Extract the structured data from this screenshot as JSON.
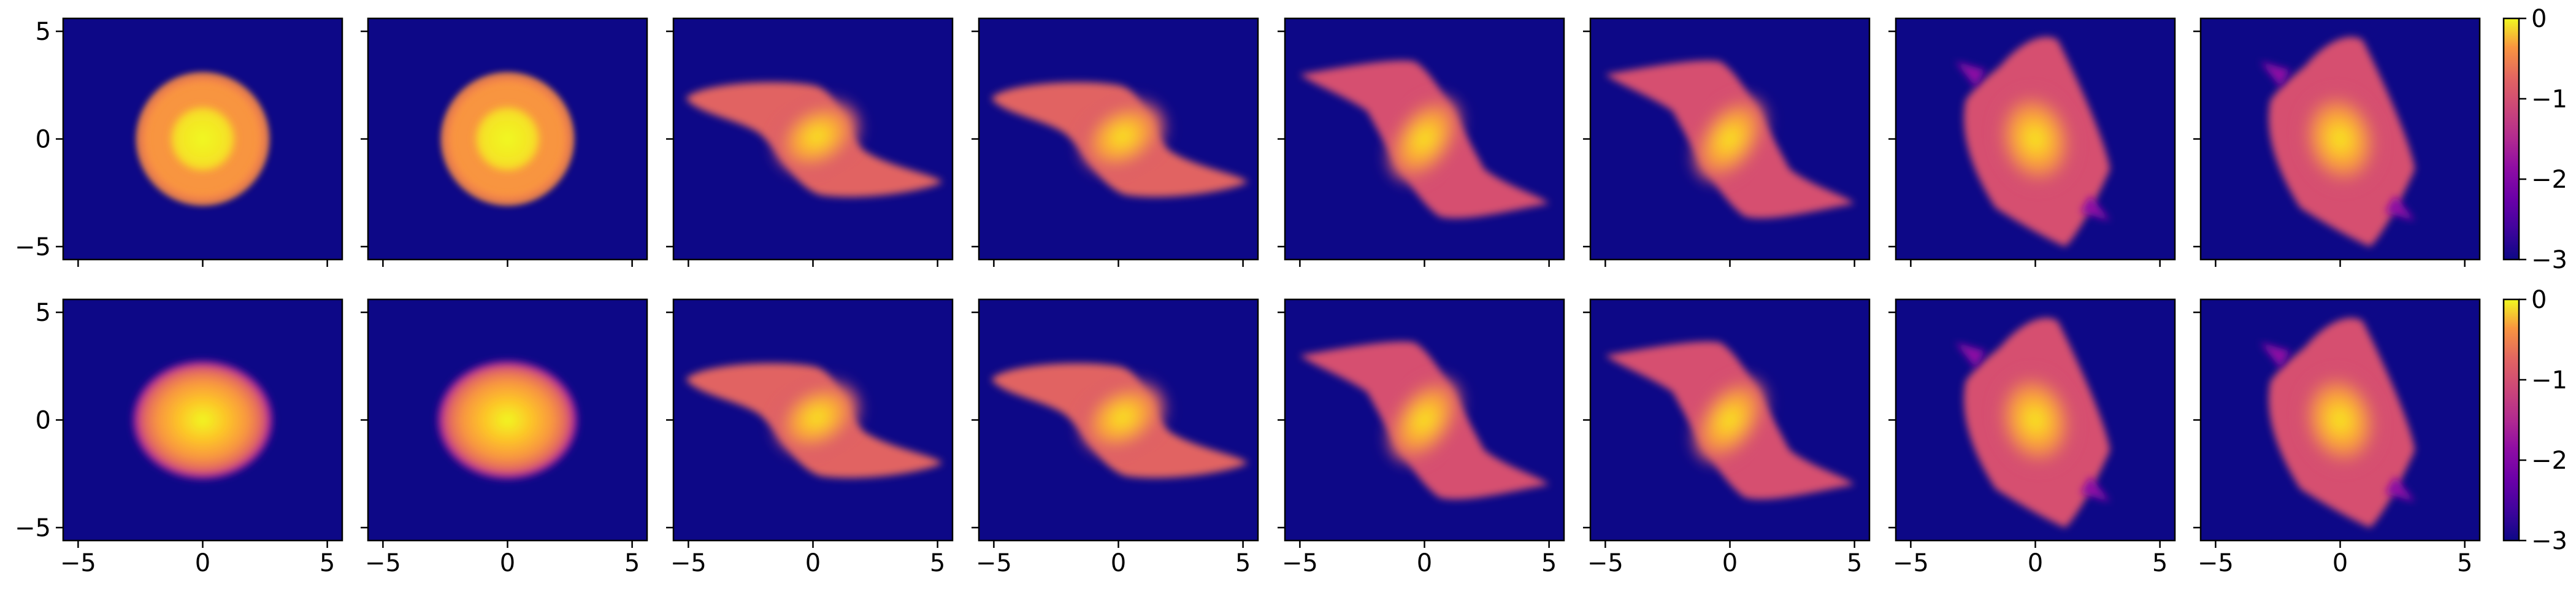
{
  "chart_data": {
    "type": "heatmap",
    "title": "",
    "grid": false,
    "rows": 2,
    "cols": 8,
    "x_ticks": [
      -5,
      0,
      5
    ],
    "y_ticks": [
      -5,
      0,
      5
    ],
    "tick_labels": {
      "minus5": "−5",
      "zero": "0",
      "plus5": "5"
    },
    "xlim": [
      -5.6,
      5.6
    ],
    "ylim": [
      -5.6,
      5.6
    ],
    "colorbar": {
      "colormap": "plasma",
      "range": [
        -3,
        0
      ],
      "ticks": [
        "0",
        "−1",
        "−2",
        "−3"
      ],
      "tick_values": [
        0,
        -1,
        -2,
        -3
      ]
    },
    "background_color": "#0d0887",
    "panels": [
      {
        "row": 0,
        "col": 0,
        "shape": "ring-disk",
        "core_radius": 1.3,
        "outer_radius": 2.6,
        "rotation_deg": 0
      },
      {
        "row": 0,
        "col": 1,
        "shape": "ring-disk",
        "core_radius": 1.3,
        "outer_radius": 2.6,
        "rotation_deg": 0
      },
      {
        "row": 0,
        "col": 2,
        "shape": "sheared-s",
        "extent": [
          -5.2,
          5.2
        ],
        "rotation_deg": -25
      },
      {
        "row": 0,
        "col": 3,
        "shape": "sheared-s",
        "extent": [
          -5.2,
          5.2
        ],
        "rotation_deg": -25
      },
      {
        "row": 0,
        "col": 4,
        "shape": "tilted-rect",
        "extent": [
          -5,
          5
        ],
        "rotation_deg": -55
      },
      {
        "row": 0,
        "col": 5,
        "shape": "tilted-rect",
        "extent": [
          -5,
          5
        ],
        "rotation_deg": -55
      },
      {
        "row": 0,
        "col": 6,
        "shape": "tilted-rect-fringe",
        "extent": [
          -5,
          5
        ],
        "rotation_deg": -70
      },
      {
        "row": 0,
        "col": 7,
        "shape": "tilted-rect-fringe",
        "extent": [
          -5,
          5
        ],
        "rotation_deg": -70
      },
      {
        "row": 1,
        "col": 0,
        "shape": "gaussian-disk",
        "outer_radius": 2.8,
        "rotation_deg": 0
      },
      {
        "row": 1,
        "col": 1,
        "shape": "gaussian-disk",
        "outer_radius": 2.8,
        "rotation_deg": 0
      },
      {
        "row": 1,
        "col": 2,
        "shape": "sheared-s",
        "extent": [
          -5.2,
          5.2
        ],
        "rotation_deg": -25
      },
      {
        "row": 1,
        "col": 3,
        "shape": "sheared-s",
        "extent": [
          -5.2,
          5.2
        ],
        "rotation_deg": -25
      },
      {
        "row": 1,
        "col": 4,
        "shape": "tilted-rect",
        "extent": [
          -5,
          5
        ],
        "rotation_deg": -55
      },
      {
        "row": 1,
        "col": 5,
        "shape": "tilted-rect",
        "extent": [
          -5,
          5
        ],
        "rotation_deg": -55
      },
      {
        "row": 1,
        "col": 6,
        "shape": "tilted-rect-fringe",
        "extent": [
          -5,
          5
        ],
        "rotation_deg": -70
      },
      {
        "row": 1,
        "col": 7,
        "shape": "tilted-rect-fringe",
        "extent": [
          -5,
          5
        ],
        "rotation_deg": -70
      }
    ]
  }
}
